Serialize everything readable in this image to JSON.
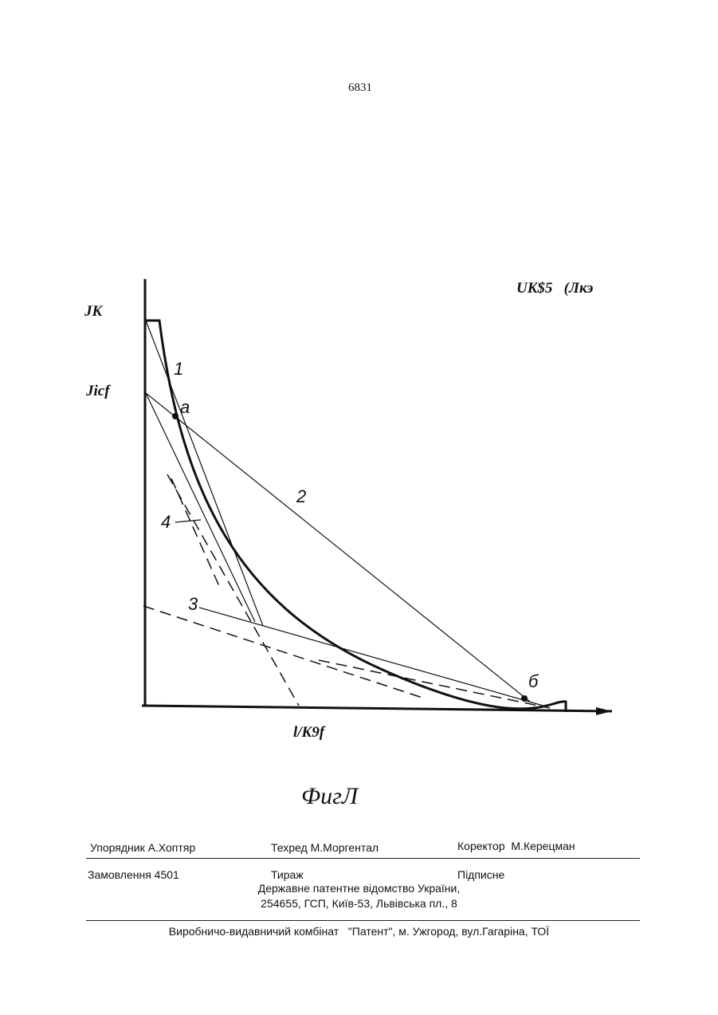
{
  "header": {
    "page_number": "6831"
  },
  "figure": {
    "labels": {
      "top_right": "UK$5   (Лкэ",
      "y_upper": "JK",
      "y_lower": "Jicf",
      "x_axis": "l/K9f"
    },
    "curve_labels": [
      "1",
      "a",
      "2",
      "4",
      "3",
      "б"
    ],
    "caption": "ФигЛ"
  },
  "footer": {
    "row1": [
      "Упорядник А.Хоптяр",
      "Техред М.Моргентал",
      "Коректор  М.Керецман"
    ],
    "row2": [
      "Замовлення 4501",
      "Тираж",
      "Підписне"
    ],
    "address": [
      "Державне патентне відомство України,",
      "254655, ГСП, Київ-53, Львівська пл., 8"
    ],
    "publisher": "Виробничо-видавничий комбінат   \"Патент\", м. Ужгород, вул.Гагаріна, ТОЇ"
  }
}
